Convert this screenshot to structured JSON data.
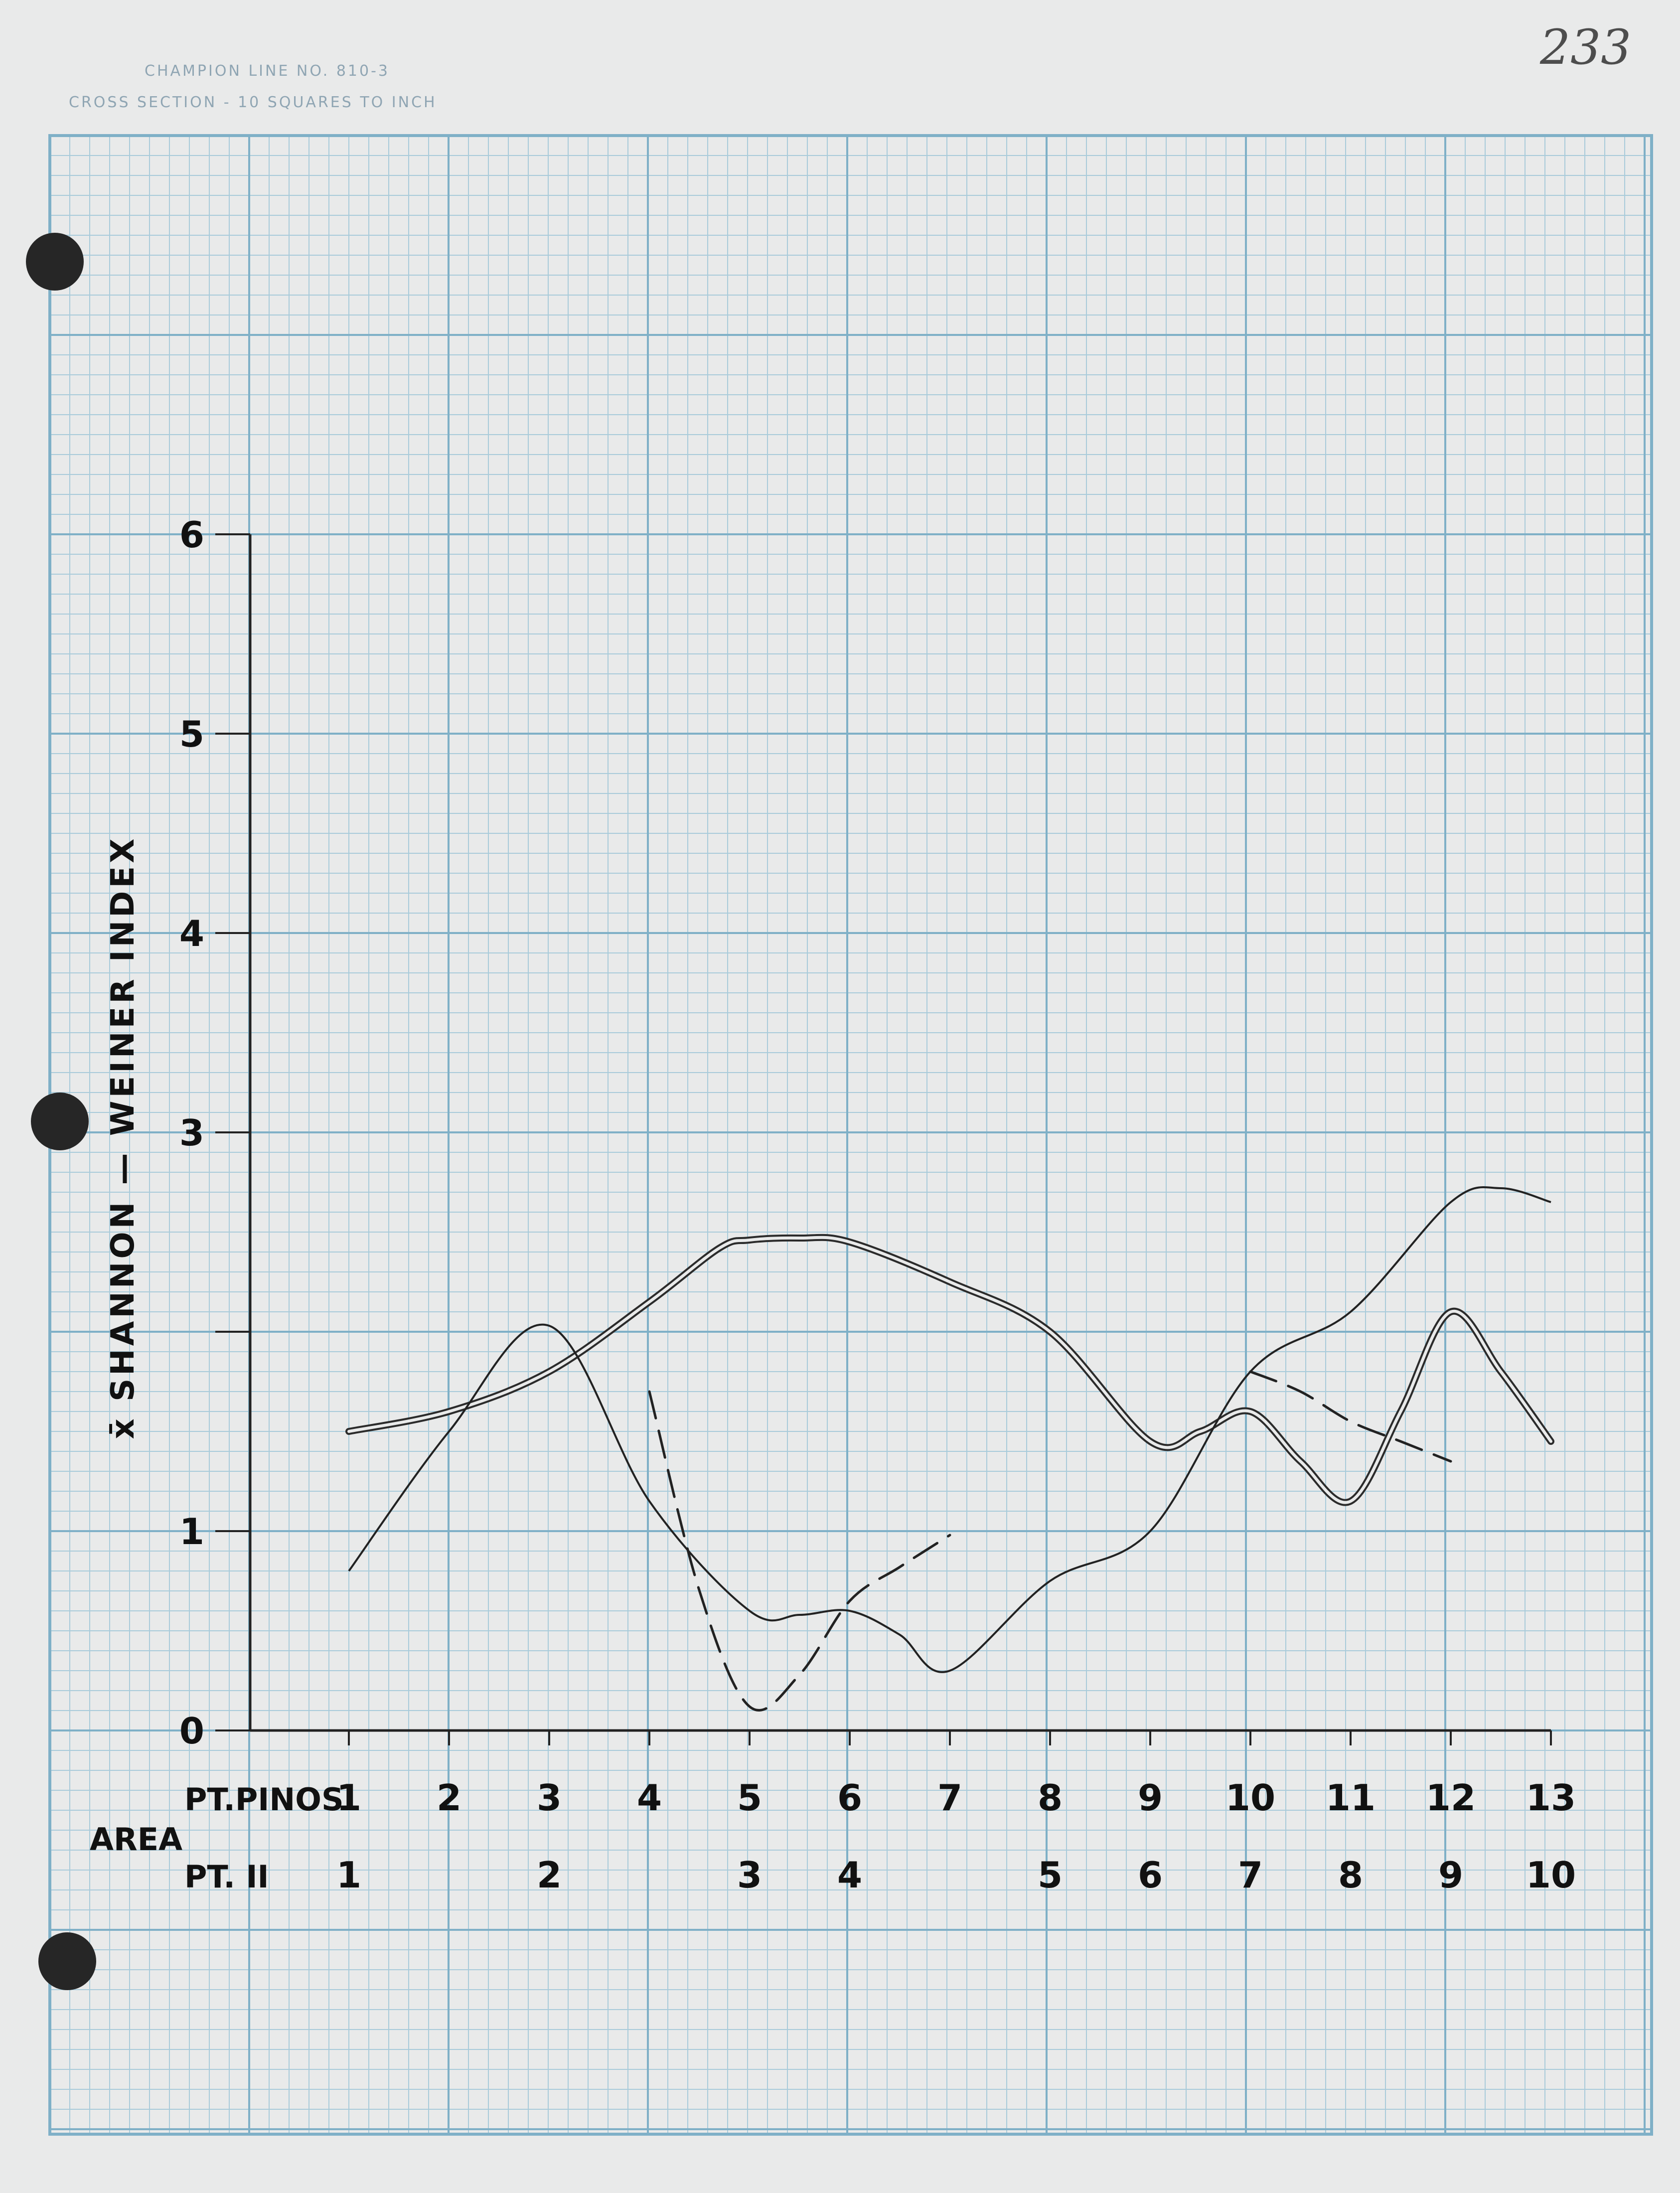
{
  "paper": {
    "header_line1": "CHAMPION LINE NO. 810-3",
    "header_line2": "CROSS SECTION - 10 SQUARES TO INCH",
    "page_number": "233",
    "colors": {
      "paper": "#e9eaea",
      "grid_minor": "#a9cbda",
      "grid_major": "#7fb0c7",
      "ink": "#222222",
      "punch_hole": "#262626"
    }
  },
  "chart_data": {
    "type": "line",
    "ylabel": "x̄ SHANNON — WEINER INDEX",
    "ylim": [
      0,
      6
    ],
    "y_ticks": [
      "0",
      "1",
      "2",
      "3",
      "4",
      "5",
      "6"
    ],
    "y_tick_values": [
      0,
      1,
      2,
      3,
      4,
      5,
      6
    ],
    "y_tick_labels_printed": [
      "0",
      "1",
      "3",
      "4",
      "5",
      "6"
    ],
    "xlim": [
      1,
      13
    ],
    "x_title": "AREA",
    "x_rows": [
      {
        "label": "PT.PINOS",
        "ticks": [
          "1",
          "2",
          "3",
          "4",
          "5",
          "6",
          "7",
          "8",
          "9",
          "10",
          "11",
          "12",
          "13"
        ],
        "positions": [
          1,
          2,
          3,
          4,
          5,
          6,
          7,
          8,
          9,
          10,
          11,
          12,
          13
        ]
      },
      {
        "label": "PT. II",
        "ticks": [
          "1",
          "2",
          "3",
          "4",
          "5",
          "6",
          "7",
          "8",
          "9",
          "10"
        ],
        "positions": [
          1,
          3,
          5,
          6,
          8,
          9,
          10,
          11,
          12,
          13
        ]
      }
    ],
    "grid": true,
    "series": [
      {
        "style": "double",
        "x": [
          1,
          2,
          3,
          4,
          4.7,
          5,
          5.5,
          6,
          7,
          8,
          9,
          9.5,
          10,
          10.5,
          11,
          11.5,
          12,
          12.5,
          13
        ],
        "y": [
          1.5,
          1.6,
          1.8,
          2.15,
          2.42,
          2.46,
          2.47,
          2.45,
          2.25,
          2.0,
          1.45,
          1.5,
          1.6,
          1.35,
          1.15,
          1.6,
          2.1,
          1.8,
          1.45
        ]
      },
      {
        "style": "solid",
        "x": [
          1,
          2,
          3,
          4,
          5,
          5.5,
          6,
          6.5,
          7,
          8,
          9,
          10,
          11,
          12,
          12.5,
          13
        ],
        "y": [
          0.8,
          1.5,
          2.03,
          1.15,
          0.6,
          0.58,
          0.6,
          0.48,
          0.3,
          0.75,
          1.0,
          1.8,
          2.1,
          2.65,
          2.72,
          2.65
        ]
      },
      {
        "style": "dashed",
        "x": [
          4,
          4.5,
          5,
          5.5,
          6,
          6.5,
          7
        ],
        "y": [
          1.7,
          0.7,
          0.12,
          0.28,
          0.65,
          0.82,
          0.98
        ]
      },
      {
        "style": "dashed",
        "x": [
          10,
          10.5,
          11,
          11.5,
          12
        ],
        "y": [
          1.8,
          1.7,
          1.55,
          1.45,
          1.35
        ]
      }
    ]
  }
}
